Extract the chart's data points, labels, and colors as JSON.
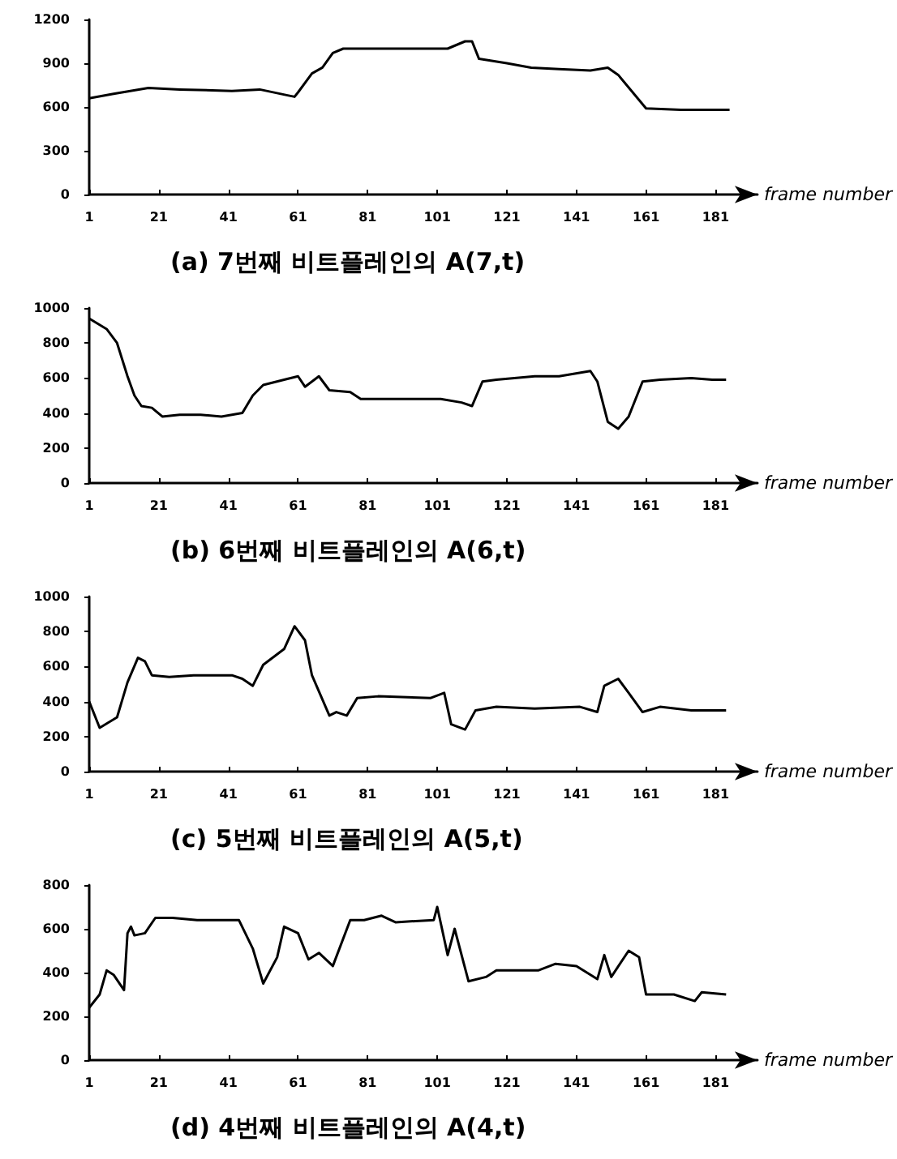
{
  "chart_data": [
    {
      "type": "line",
      "title": "(a) 7번째 비트플레인의 A(7,t)",
      "xlabel": "frame number",
      "color": "#000000",
      "xlim": [
        1,
        193
      ],
      "xticks": [
        1,
        21,
        41,
        61,
        81,
        101,
        121,
        141,
        161,
        181
      ],
      "ylim": [
        0,
        1200
      ],
      "yticks": [
        0,
        300,
        600,
        900,
        1200
      ],
      "x": [
        1,
        8,
        18,
        27,
        42,
        50,
        58,
        60,
        61,
        65,
        68,
        71,
        74,
        83,
        104,
        109,
        111,
        113,
        121,
        128,
        136,
        145,
        150,
        153,
        161,
        171,
        185
      ],
      "values": [
        660,
        690,
        730,
        720,
        710,
        720,
        680,
        670,
        700,
        830,
        870,
        970,
        1000,
        1000,
        1000,
        1050,
        1050,
        930,
        900,
        870,
        860,
        850,
        870,
        820,
        590,
        580,
        580
      ]
    },
    {
      "type": "line",
      "title": "(b) 6번째 비트플레인의 A(6,t)",
      "xlabel": "frame number",
      "color": "#000000",
      "xlim": [
        1,
        193
      ],
      "xticks": [
        1,
        21,
        41,
        61,
        81,
        101,
        121,
        141,
        161,
        181
      ],
      "ylim": [
        0,
        1000
      ],
      "yticks": [
        0,
        200,
        400,
        600,
        800,
        1000
      ],
      "x": [
        1,
        6,
        9,
        12,
        14,
        16,
        19,
        22,
        27,
        33,
        39,
        45,
        48,
        51,
        57,
        61,
        63,
        67,
        70,
        76,
        79,
        91,
        102,
        108,
        111,
        114,
        118,
        129,
        136,
        145,
        147,
        150,
        153,
        156,
        160,
        165,
        174,
        180,
        184
      ],
      "values": [
        940,
        880,
        800,
        610,
        500,
        440,
        430,
        380,
        390,
        390,
        380,
        400,
        500,
        560,
        590,
        610,
        550,
        610,
        530,
        520,
        480,
        480,
        480,
        460,
        440,
        580,
        590,
        610,
        610,
        640,
        580,
        350,
        310,
        380,
        580,
        590,
        600,
        590,
        590
      ]
    },
    {
      "type": "line",
      "title": "(c) 5번째 비트플레인의 A(5,t)",
      "xlabel": "frame number",
      "color": "#000000",
      "xlim": [
        1,
        193
      ],
      "xticks": [
        1,
        21,
        41,
        61,
        81,
        101,
        121,
        141,
        161,
        181
      ],
      "ylim": [
        0,
        1000
      ],
      "yticks": [
        0,
        200,
        400,
        600,
        800,
        1000
      ],
      "x": [
        1,
        4,
        9,
        12,
        15,
        17,
        19,
        24,
        31,
        42,
        45,
        48,
        51,
        57,
        60,
        63,
        65,
        70,
        72,
        75,
        78,
        84,
        99,
        103,
        105,
        109,
        112,
        118,
        129,
        142,
        147,
        149,
        153,
        156,
        160,
        165,
        174,
        184
      ],
      "values": [
        400,
        250,
        310,
        510,
        650,
        630,
        550,
        540,
        550,
        550,
        530,
        490,
        610,
        700,
        830,
        750,
        550,
        320,
        340,
        320,
        420,
        430,
        420,
        450,
        270,
        240,
        350,
        370,
        360,
        370,
        340,
        490,
        530,
        450,
        340,
        370,
        350,
        350
      ]
    },
    {
      "type": "line",
      "title": "(d) 4번째 비트플레인의 A(4,t)",
      "xlabel": "frame number",
      "color": "#000000",
      "xlim": [
        1,
        193
      ],
      "xticks": [
        1,
        21,
        41,
        61,
        81,
        101,
        121,
        141,
        161,
        181
      ],
      "ylim": [
        0,
        800
      ],
      "yticks": [
        0,
        200,
        400,
        600,
        800
      ],
      "x": [
        1,
        4,
        6,
        8,
        11,
        12,
        13,
        14,
        17,
        20,
        25,
        32,
        44,
        48,
        51,
        55,
        57,
        61,
        64,
        67,
        71,
        76,
        80,
        85,
        89,
        100,
        101,
        104,
        106,
        110,
        115,
        118,
        130,
        135,
        141,
        147,
        149,
        151,
        156,
        159,
        161,
        169,
        175,
        177,
        184
      ],
      "values": [
        240,
        300,
        410,
        390,
        320,
        580,
        610,
        570,
        580,
        650,
        650,
        640,
        640,
        510,
        350,
        470,
        610,
        580,
        460,
        490,
        430,
        640,
        640,
        660,
        630,
        640,
        700,
        480,
        600,
        360,
        380,
        410,
        410,
        440,
        430,
        370,
        480,
        380,
        500,
        470,
        300,
        300,
        270,
        310,
        300
      ]
    }
  ]
}
